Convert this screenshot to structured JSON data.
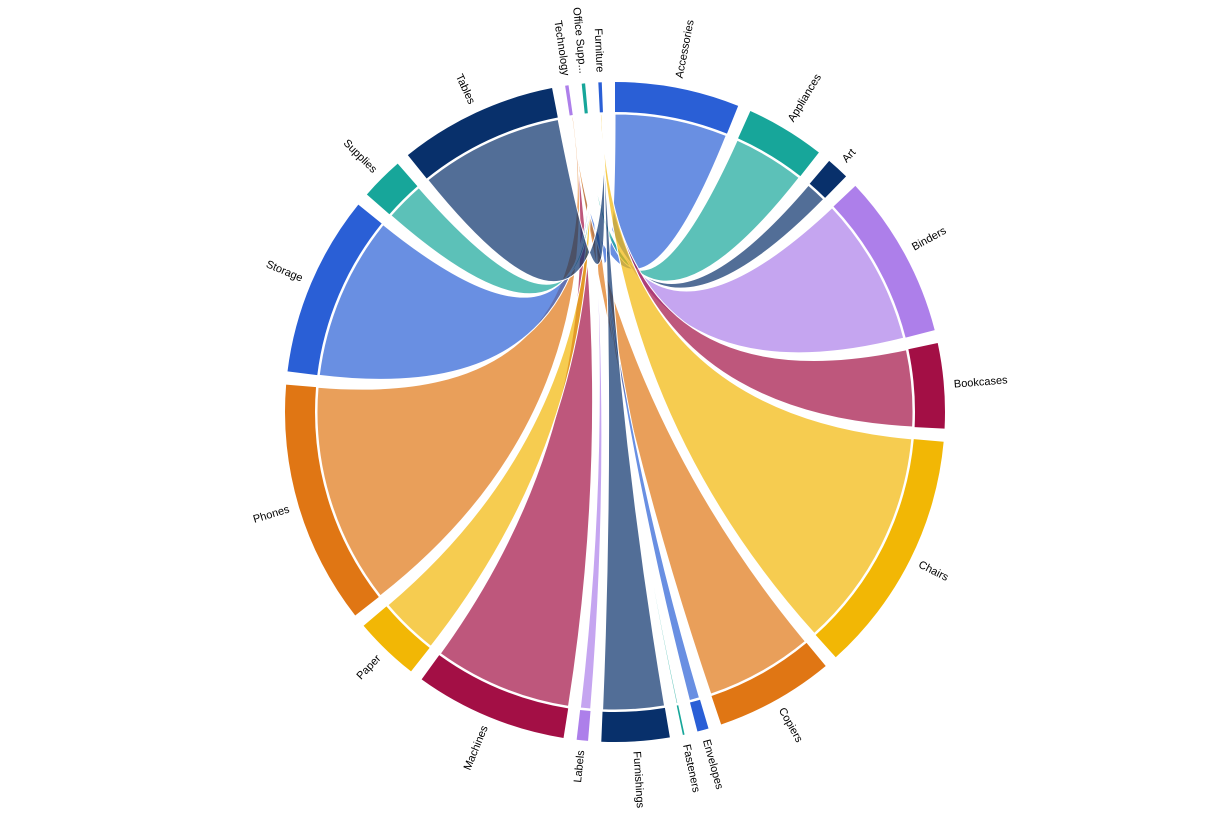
{
  "chart_data": {
    "type": "dependencywheel",
    "nodes": [
      {
        "name": "Accessories",
        "color": "#2a5fd6",
        "value": 22
      },
      {
        "name": "Appliances",
        "color": "#17a69a",
        "value": 14
      },
      {
        "name": "Art",
        "color": "#08306b",
        "value": 4
      },
      {
        "name": "Binders",
        "color": "#ad7fea",
        "value": 29
      },
      {
        "name": "Bookcases",
        "color": "#a30f45",
        "value": 15
      },
      {
        "name": "Chairs",
        "color": "#f2b705",
        "value": 43
      },
      {
        "name": "Copiers",
        "color": "#e07614",
        "value": 21
      },
      {
        "name": "Envelopes",
        "color": "#2a5fd6",
        "value": 2
      },
      {
        "name": "Fasteners",
        "color": "#17a69a",
        "value": 0.3
      },
      {
        "name": "Furnishings",
        "color": "#08306b",
        "value": 12
      },
      {
        "name": "Labels",
        "color": "#ad7fea",
        "value": 2
      },
      {
        "name": "Machines",
        "color": "#a30f45",
        "value": 27
      },
      {
        "name": "Paper",
        "color": "#f2b705",
        "value": 11.5
      },
      {
        "name": "Phones",
        "color": "#e07614",
        "value": 43
      },
      {
        "name": "Storage",
        "color": "#2a5fd6",
        "value": 32
      },
      {
        "name": "Supplies",
        "color": "#17a69a",
        "value": 7.6
      },
      {
        "name": "Tables",
        "color": "#08306b",
        "value": 28
      },
      {
        "name": "Technology",
        "color": "#ad7fea",
        "value": 0.6
      },
      {
        "name": "Office Supp...",
        "color": "#17a69a",
        "value": 0.6
      },
      {
        "name": "Furniture",
        "color": "#2a5fd6",
        "value": 0.6
      }
    ],
    "links": [
      {
        "from": "Technology",
        "to": "Accessories",
        "weight": 22
      },
      {
        "from": "Office Supp...",
        "to": "Appliances",
        "weight": 14
      },
      {
        "from": "Office Supp...",
        "to": "Art",
        "weight": 4
      },
      {
        "from": "Office Supp...",
        "to": "Binders",
        "weight": 29
      },
      {
        "from": "Furniture",
        "to": "Bookcases",
        "weight": 15
      },
      {
        "from": "Furniture",
        "to": "Chairs",
        "weight": 43
      },
      {
        "from": "Technology",
        "to": "Copiers",
        "weight": 21
      },
      {
        "from": "Office Supp...",
        "to": "Envelopes",
        "weight": 2
      },
      {
        "from": "Office Supp...",
        "to": "Fasteners",
        "weight": 0.3
      },
      {
        "from": "Furniture",
        "to": "Furnishings",
        "weight": 12
      },
      {
        "from": "Office Supp...",
        "to": "Labels",
        "weight": 2
      },
      {
        "from": "Technology",
        "to": "Machines",
        "weight": 27
      },
      {
        "from": "Office Supp...",
        "to": "Paper",
        "weight": 11.5
      },
      {
        "from": "Technology",
        "to": "Phones",
        "weight": 43
      },
      {
        "from": "Office Supp...",
        "to": "Storage",
        "weight": 32
      },
      {
        "from": "Office Supp...",
        "to": "Supplies",
        "weight": 7.6
      },
      {
        "from": "Furniture",
        "to": "Tables",
        "weight": 28
      }
    ]
  }
}
